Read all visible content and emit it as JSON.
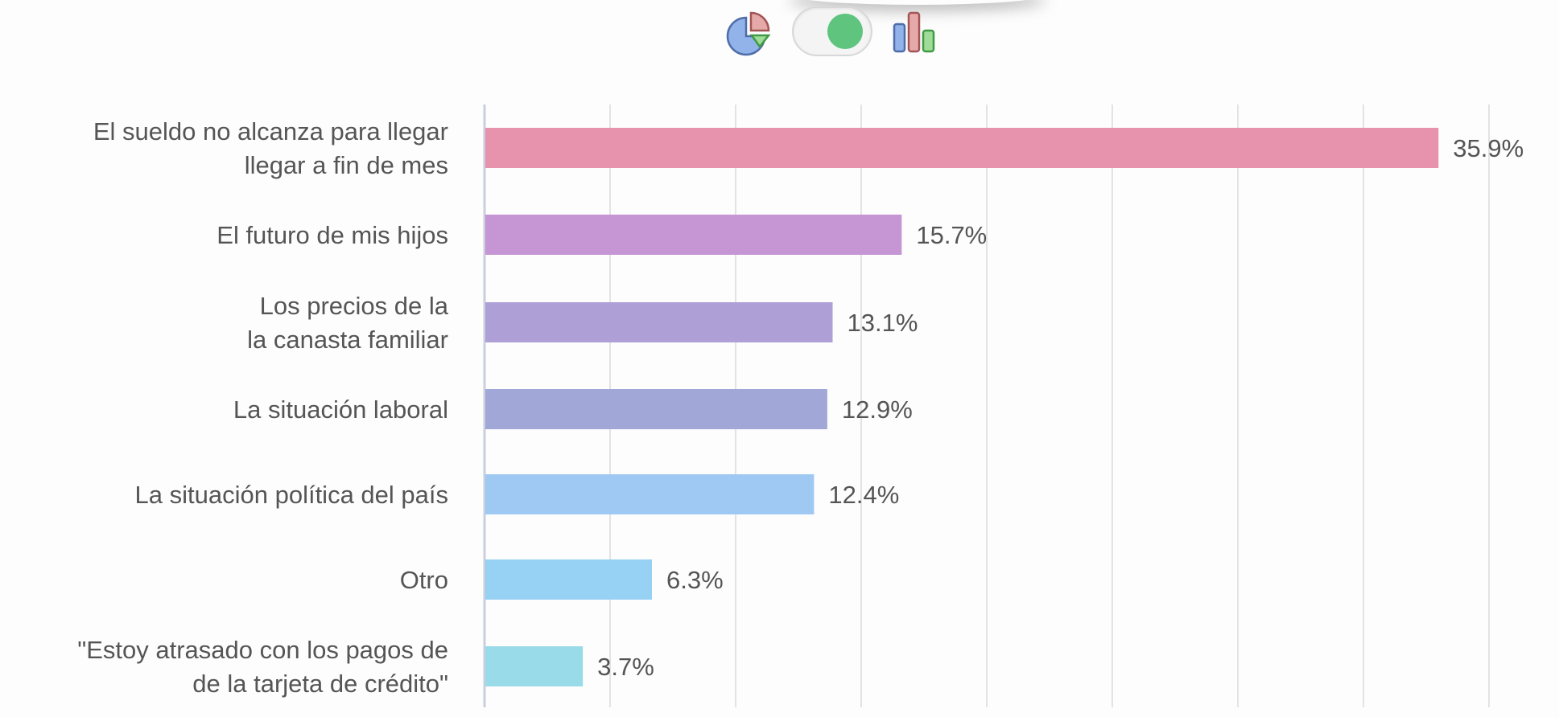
{
  "view_toggle": {
    "pie_icon": "pie-chart-icon",
    "bar_icon": "bar-chart-icon",
    "switch_on_color": "#5ec47e"
  },
  "chart_data": {
    "type": "bar",
    "orientation": "horizontal",
    "title": "",
    "xlabel": "",
    "ylabel": "",
    "xlim": [
      0,
      37.8
    ],
    "grid": true,
    "categories": [
      [
        "El sueldo no alcanza para llegar",
        "llegar a fin de mes"
      ],
      [
        "El futuro de mis hijos"
      ],
      [
        "Los precios de la",
        "la canasta familiar"
      ],
      [
        "La situación laboral"
      ],
      [
        "La situación política del país"
      ],
      [
        "Otro"
      ],
      [
        "\"Estoy atrasado con los pagos de",
        "de la tarjeta de crédito\""
      ]
    ],
    "values": [
      35.9,
      15.7,
      13.1,
      12.9,
      12.4,
      6.3,
      3.7
    ],
    "value_labels": [
      "35.9%",
      "15.7%",
      "13.1%",
      "12.9%",
      "12.4%",
      "6.3%",
      "3.7%"
    ],
    "colors": [
      "#e793ae",
      "#c595d4",
      "#ae9fd7",
      "#a1a8d8",
      "#9fc9f3",
      "#97d1f4",
      "#99dbe8"
    ]
  }
}
